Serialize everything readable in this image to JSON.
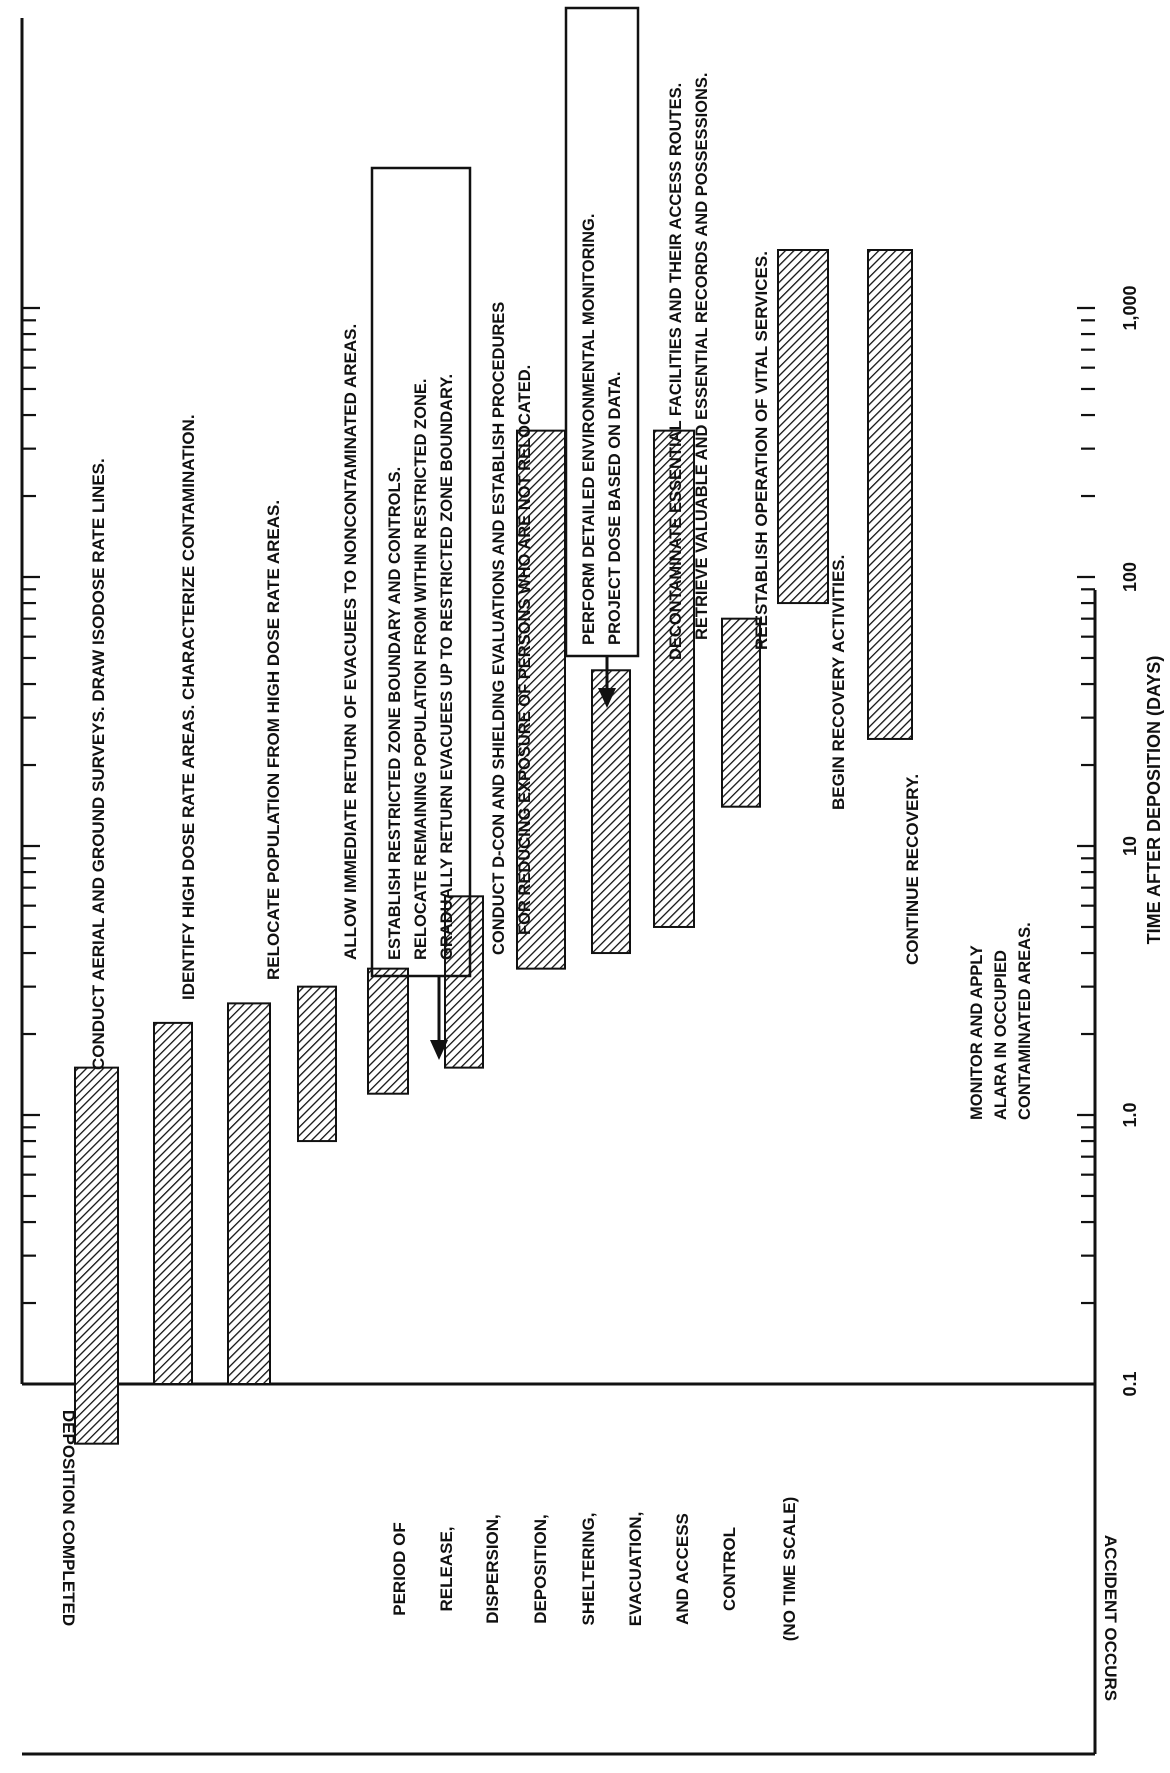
{
  "chart_data": {
    "type": "bar",
    "orientation": "horizontal-timeline",
    "rotation": "page rotated 90 degrees counter-clockwise",
    "xscale": "log",
    "xlabel": "TIME AFTER DEPOSITION (DAYS)",
    "xlim": [
      0.05,
      3000
    ],
    "xticks": [
      "0.1",
      "1.0",
      "10",
      "100",
      "1,000"
    ],
    "tasks": [
      {
        "label": "CONDUCT AERIAL AND GROUND SURVEYS.  DRAW ISODOSE RATE LINES.",
        "start": 0.06,
        "end": 1.5
      },
      {
        "label": "IDENTIFY HIGH DOSE RATE AREAS.  CHARACTERIZE CONTAMINATION.",
        "start": 0.1,
        "end": 2.2
      },
      {
        "label": "RELOCATE POPULATION FROM HIGH DOSE RATE AREAS.",
        "start": 0.1,
        "end": 2.6
      },
      {
        "label": "ALLOW IMMEDIATE RETURN OF EVACUEES TO NONCONTAMINATED AREAS.",
        "start": 0.8,
        "end": 3
      },
      {
        "label": "ESTABLISH RESTRICTED ZONE BOUNDARY AND CONTROLS. RELOCATE REMAINING POPULATION FROM WITHIN RESTRICTED ZONE. GRADUALLY RETURN EVACUEES UP TO RESTRICTED ZONE BOUNDARY.",
        "start": 1.2,
        "end": 3.5
      },
      {
        "label": "CONDUCT D-CON AND SHIELDING EVALUATIONS AND ESTABLISH PROCEDURES FOR REDUCING EXPOSURE OF PERSONS WHO ARE NOT RELOCATED.",
        "start": 1.5,
        "end": 6.5
      },
      {
        "label": "PERFORM DETAILED ENVIRONMENTAL MONITORING. PROJECT DOSE BASED ON DATA.",
        "start": 3.5,
        "end": 350
      },
      {
        "label": "DECONTAMINATE ESSENTIAL FACILITIES AND THEIR ACCESS ROUTES. RETRIEVE VALUABLE AND ESSENTIAL RECORDS AND POSSESSIONS.",
        "start": 4,
        "end": 45
      },
      {
        "label": "REESTABLISH OPERATION OF VITAL SERVICES.",
        "start": 5,
        "end": 350
      },
      {
        "label": "BEGIN RECOVERY ACTIVITIES.",
        "start": 14,
        "end": 70
      },
      {
        "label": "CONTINUE RECOVERY.",
        "start": 80,
        "end": 2000,
        "continues": true
      },
      {
        "label": "MONITOR AND APPLY ALARA IN OCCUPIED CONTAMINATED AREAS.",
        "start": 25,
        "end": 3000,
        "continues": true
      }
    ],
    "left_panel": {
      "top_label": "ACCIDENT OCCURS",
      "bottom_label": "DEPOSITION COMPLETED",
      "lines": [
        "PERIOD OF",
        "RELEASE,",
        "DISPERSION,",
        "DEPOSITION,",
        "SHELTERING,",
        "EVACUATION,",
        "AND ACCESS",
        "CONTROL"
      ],
      "note": "(NO TIME SCALE)"
    }
  }
}
